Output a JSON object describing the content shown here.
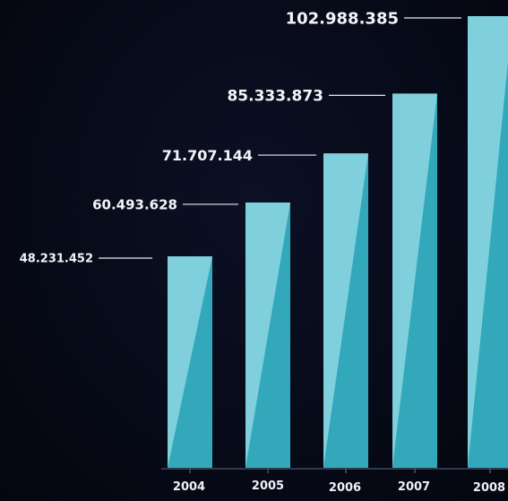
{
  "colors": {
    "background": "#070a18",
    "bar_light": "#7fd0dc",
    "bar_dark": "#2ba3b6",
    "text": "#f2f4f8",
    "leader_line": "#e6e9ee"
  },
  "chart_data": {
    "type": "bar",
    "title": "",
    "xlabel": "",
    "ylabel": "",
    "categories": [
      "2004",
      "2005",
      "2006",
      "2007",
      "2008"
    ],
    "values": [
      48231452,
      60493628,
      71707144,
      85333873,
      102988385
    ],
    "value_labels": [
      "48.231.452",
      "60.493.628",
      "71.707.144",
      "85.333.873",
      "102.988.385"
    ],
    "grid": false,
    "legend": "none"
  }
}
